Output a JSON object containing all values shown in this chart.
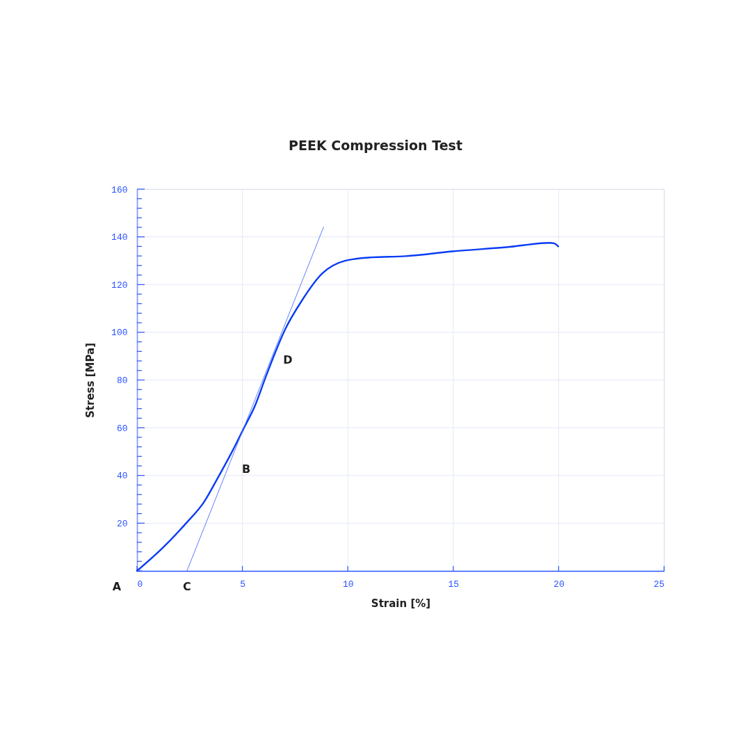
{
  "chart_data": {
    "type": "line",
    "title": "PEEK Compression Test",
    "xlabel": "Strain [%]",
    "ylabel": "Stress [MPa]",
    "series": [
      {
        "color": "#0a3cf5",
        "x": [
          0,
          1.2,
          2.3,
          3.18,
          3.84,
          4.5,
          5.05,
          5.6,
          6.09,
          7.03,
          7.8,
          8.78,
          9.88,
          11.09,
          12.74,
          14.94,
          17.68,
          19.56,
          19.78,
          19.98
        ],
        "values": [
          0,
          9.5,
          19.7,
          28.9,
          39.1,
          49.8,
          59.5,
          69.3,
          80.9,
          101.3,
          113,
          124.6,
          130,
          131.4,
          131.9,
          133.9,
          135.8,
          137.5,
          137.3,
          136
        ]
      },
      {
        "color": "#4a6cff",
        "x": [
          2.37,
          8.85
        ],
        "values": [
          0,
          144.1
        ]
      }
    ],
    "annotations": [
      {
        "text": "A",
        "x": 0,
        "y": 0
      },
      "B",
      {
        "text": "C",
        "x": 2.37,
        "y": 0
      },
      "D"
    ],
    "xlim": [
      0,
      25
    ],
    "xticks": [
      0,
      5,
      10,
      15,
      20,
      25
    ],
    "ylim": [
      0,
      160
    ],
    "yticks": [
      {
        "value": 0,
        "label": null
      },
      {
        "value": 4,
        "label": null
      },
      {
        "value": 8,
        "label": null
      },
      {
        "value": 12,
        "label": null
      },
      {
        "value": 16,
        "label": null
      },
      20,
      {
        "value": 24,
        "label": null
      },
      {
        "value": 28,
        "label": null
      },
      {
        "value": 32,
        "label": null
      },
      {
        "value": 36,
        "label": null
      },
      40,
      {
        "value": 44,
        "label": null
      },
      {
        "value": 48,
        "label": null
      },
      {
        "value": 52,
        "label": null
      },
      {
        "value": 56,
        "label": null
      },
      60,
      {
        "value": 64,
        "label": null
      },
      {
        "value": 68,
        "label": null
      },
      {
        "value": 72,
        "label": null
      },
      {
        "value": 76,
        "label": null
      },
      80,
      {
        "value": 84,
        "label": null
      },
      {
        "value": 88,
        "label": null
      },
      {
        "value": 92,
        "label": null
      },
      {
        "value": 96,
        "label": null
      },
      100,
      {
        "value": 104,
        "label": null
      },
      {
        "value": 108,
        "label": null
      },
      {
        "value": 112,
        "label": null
      },
      {
        "value": 116,
        "label": null
      },
      120,
      {
        "value": 124,
        "label": null
      },
      {
        "value": 128,
        "label": null
      },
      {
        "value": 132,
        "label": null
      },
      {
        "value": 136,
        "label": null
      },
      140,
      {
        "value": 144,
        "label": null
      },
      {
        "value": 148,
        "label": null
      },
      {
        "value": 152,
        "label": null
      },
      {
        "value": 156,
        "label": null
      },
      160
    ],
    "grid": true,
    "marker": "none",
    "line_style": "solid"
  }
}
